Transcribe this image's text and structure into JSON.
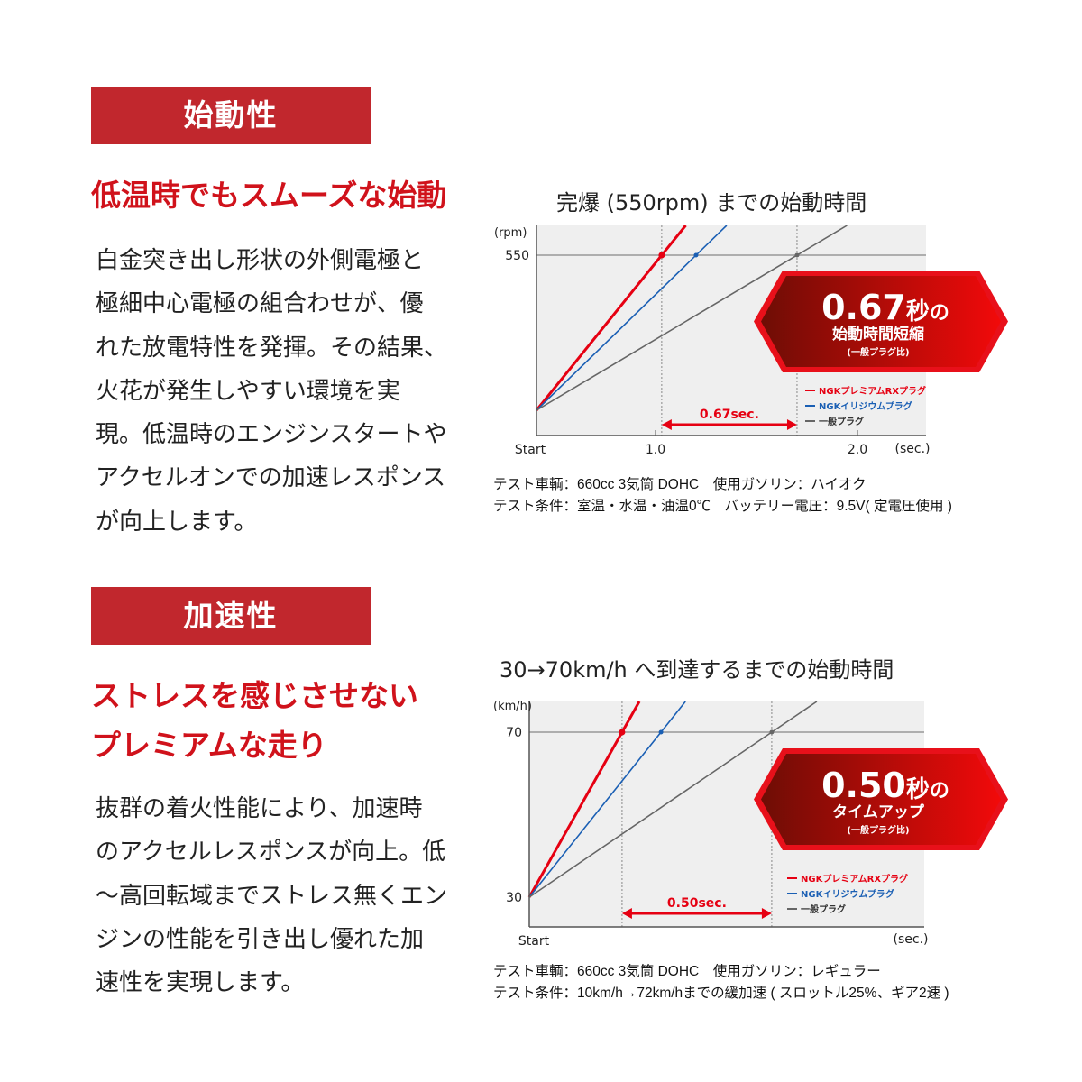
{
  "section1": {
    "header": "始動性",
    "subtitle": "低温時でもスムーズな始動",
    "body_lines": [
      "白金突き出し形状の外側電極と",
      "極細中心電極の組合わせが、優",
      "れた放電特性を発揮。その結果、",
      "火花が発生しやすい環境を実",
      "現。低温時のエンジンスタートや",
      "アクセルオンでの加速レスポンス",
      "が向上します。"
    ],
    "notes": [
      "テスト車輌：660cc 3気筒 DOHC　使用ガソリン：ハイオク",
      "テスト条件：室温・水温・油温0℃　バッテリー電圧：9.5V( 定電圧使用 )"
    ]
  },
  "section2": {
    "header": "加速性",
    "subtitle_lines": [
      "ストレスを感じさせない",
      "プレミアムな走り"
    ],
    "body_lines": [
      "抜群の着火性能により、加速時",
      "のアクセルレスポンスが向上。低",
      "～高回転域までストレス無くエン",
      "ジンの性能を引き出し優れた加",
      "速性を実現します。"
    ],
    "notes": [
      "テスト車輌：660cc 3気筒 DOHC　使用ガソリン：レギュラー",
      "テスト条件：10km/h→72km/hまでの緩加速 ( スロットル25%、ギア2速 )"
    ]
  },
  "colors": {
    "accent": "#c1272d",
    "red_series": "#e60012",
    "blue_series": "#1a5fb4",
    "gray_series": "#666666",
    "plot_bg": "#efefef"
  },
  "chart_data": [
    {
      "type": "line",
      "title": "完爆 (550rpm) までの始動時間",
      "ylabel": "(rpm)",
      "xlabel": "(sec.)",
      "x_ticks": [
        "Start",
        "1.0",
        "2.0"
      ],
      "y_ticks": [
        "550"
      ],
      "target": 550,
      "series": [
        {
          "name": "NGKプレミアムRXプラグ",
          "color": "#e60012",
          "time_to_target": 1.03
        },
        {
          "name": "NGKイリジウムプラグ",
          "color": "#1a5fb4",
          "time_to_target": 1.2
        },
        {
          "name": "一般プラグ",
          "color": "#666666",
          "time_to_target": 1.7
        }
      ],
      "difference_label": "0.67sec.",
      "badge": {
        "big": "0.67",
        "unit": "秒",
        "suffix": "の",
        "line2": "始動時間短縮",
        "line3": "(一般プラグ比)"
      },
      "legend": "bottom-right",
      "grid": false
    },
    {
      "type": "line",
      "title": "30→70km/h へ到達するまでの始動時間",
      "ylabel": "(km/h)",
      "xlabel": "(sec.)",
      "x_ticks": [
        "Start"
      ],
      "y_ticks": [
        "70",
        "30"
      ],
      "target": 70,
      "start_value": 30,
      "series": [
        {
          "name": "NGKプレミアムRXプラグ",
          "color": "#e60012",
          "time_to_target": 0.31
        },
        {
          "name": "NGKイリジウムプラグ",
          "color": "#1a5fb4",
          "time_to_target": 0.44
        },
        {
          "name": "一般プラグ",
          "color": "#666666",
          "time_to_target": 0.81
        }
      ],
      "difference_label": "0.50sec.",
      "badge": {
        "big": "0.50",
        "unit": "秒",
        "suffix": "の",
        "line2": "タイムアップ",
        "line3": "(一般プラグ比)"
      },
      "legend": "bottom-right",
      "grid": false
    }
  ]
}
